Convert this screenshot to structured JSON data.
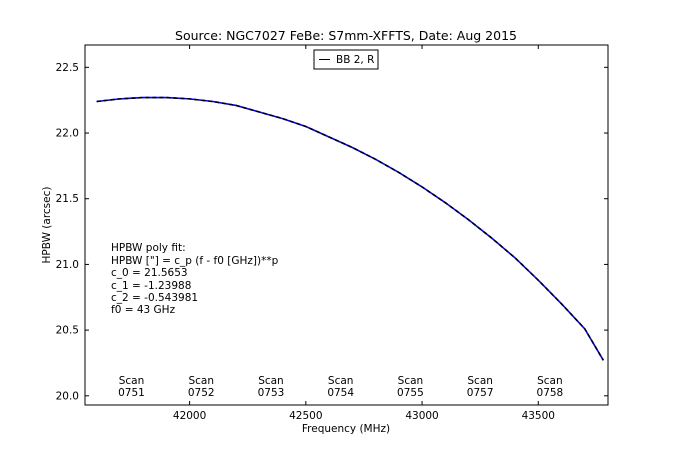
{
  "chart_data": {
    "type": "line",
    "title": "Source: NGC7027 FeBe: S7mm-XFFTS, Date: Aug 2015",
    "xlabel": "Frequency (MHz)",
    "ylabel": "HPBW (arcsec)",
    "xlim": [
      41550,
      43800
    ],
    "ylim": [
      19.93,
      22.67
    ],
    "xticks": [
      42000,
      42500,
      43000,
      43500
    ],
    "xtick_labels": [
      "42000",
      "42500",
      "43000",
      "43500"
    ],
    "yticks": [
      20.0,
      20.5,
      21.0,
      21.5,
      22.0,
      22.5
    ],
    "ytick_labels": [
      "20.0",
      "20.5",
      "21.0",
      "21.5",
      "22.0",
      "22.5"
    ],
    "grid": false,
    "legend": {
      "placement": "top-center",
      "entries": [
        "BB 2, R"
      ]
    },
    "series": [
      {
        "name": "BB 2, R",
        "color": "#0000ff",
        "fit_color": "#000000",
        "fit_style": "dashed",
        "x": [
          41600,
          41700,
          41800,
          41900,
          42000,
          42100,
          42200,
          42300,
          42400,
          42500,
          42600,
          42700,
          42800,
          42900,
          43000,
          43100,
          43200,
          43300,
          43400,
          43500,
          43600,
          43700,
          43780
        ],
        "y": [
          22.24,
          22.26,
          22.27,
          22.27,
          22.26,
          22.24,
          22.21,
          22.16,
          22.11,
          22.05,
          21.97,
          21.89,
          21.8,
          21.7,
          21.59,
          21.47,
          21.34,
          21.2,
          21.05,
          20.88,
          20.7,
          20.51,
          20.27
        ]
      }
    ],
    "annotations": {
      "fit_lines": [
        "HPBW poly fit:",
        "HPBW [\"] = c_p (f - f0 [GHz])**p",
        "c_0 = 21.5653",
        "c_1 = -1.23988",
        "c_2 = -0.543981",
        "f0 = 43 GHz"
      ],
      "scans": [
        {
          "label": "Scan",
          "id": "0751",
          "x": 41750
        },
        {
          "label": "Scan",
          "id": "0752",
          "x": 42050
        },
        {
          "label": "Scan",
          "id": "0753",
          "x": 42350
        },
        {
          "label": "Scan",
          "id": "0754",
          "x": 42650
        },
        {
          "label": "Scan",
          "id": "0755",
          "x": 42950
        },
        {
          "label": "Scan",
          "id": "0757",
          "x": 43250
        },
        {
          "label": "Scan",
          "id": "0758",
          "x": 43550
        }
      ]
    }
  }
}
